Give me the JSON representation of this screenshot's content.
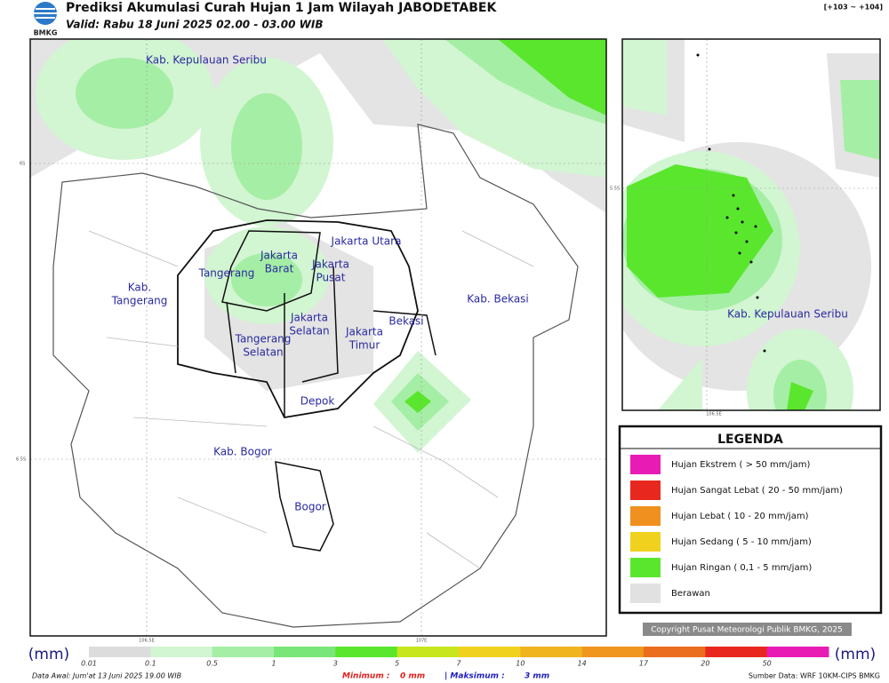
{
  "header": {
    "logo_text": "BMKG",
    "title": "Prediksi Akumulasi Curah Hujan 1 Jam Wilayah JABODETABEK",
    "valid": "Valid: Rabu 18 Juni 2025 02.00 - 03.00 WIB",
    "code": "[+103 ~ +104]"
  },
  "map": {
    "labels": [
      [
        "Kab. Kepulauan Seribu"
      ],
      [
        "Jakarta Utara"
      ],
      [
        "Jakarta",
        "Barat"
      ],
      [
        "Jakarta",
        "Pusat"
      ],
      [
        "Tangerang"
      ],
      [
        "Kab.",
        "Tangerang"
      ],
      [
        "Kab. Bekasi"
      ],
      [
        "Jakarta",
        "Selatan"
      ],
      [
        "Bekasi"
      ],
      [
        "Jakarta",
        "Timur"
      ],
      [
        "Tangerang",
        "Selatan"
      ],
      [
        "Depok"
      ],
      [
        "Kab. Bogor"
      ],
      [
        "Bogor"
      ]
    ],
    "coords": [
      "6S",
      "6.5S",
      "106.5E",
      "107E"
    ]
  },
  "inset": {
    "label": "Kab. Kepulauan Seribu",
    "coords": [
      "5.5S",
      "106.5E"
    ]
  },
  "legend": {
    "title": "LEGENDA",
    "items": [
      {
        "label": "Hujan Ekstrem ( > 50 mm/jam)",
        "color": "#e81cb4"
      },
      {
        "label": "Hujan Sangat Lebat ( 20 - 50 mm/jam)",
        "color": "#e8281e"
      },
      {
        "label": "Hujan Lebat ( 10 - 20 mm/jam)",
        "color": "#f0901e"
      },
      {
        "label": "Hujan Sedang ( 5 - 10 mm/jam)",
        "color": "#f0d21e"
      },
      {
        "label": "Hujan Ringan ( 0,1 - 5 mm/jam)",
        "color": "#5ae62d"
      },
      {
        "label": "Berawan",
        "color": "#e1e1e1"
      }
    ]
  },
  "copyright": "Copyright Pusat Meteorologi Publik BMKG, 2025",
  "colorbar": {
    "unit_left": "(mm)",
    "unit_right": "(mm)",
    "labels": [
      0.01,
      0.1,
      0.5,
      1,
      3,
      5,
      7,
      10,
      14,
      17,
      20,
      50
    ],
    "colors": [
      "#dcdcdc",
      "#d2f5d2",
      "#a5eea5",
      "#78e678",
      "#5ae62d",
      "#c8e61e",
      "#f0d21e",
      "#f0b41e",
      "#f0961e",
      "#eb6e1e",
      "#e8281e",
      "#e81cb4"
    ]
  },
  "footer": {
    "data_awal": "Data Awal: Jum'at 13 Juni 2025 19.00 WIB",
    "minimum_label": "Minimum :",
    "minimum": "0 mm",
    "maximum_label": "| Maksimum :",
    "maximum": "3 mm",
    "source": "Sumber Data: WRF 10KM-CIPS BMKG"
  }
}
